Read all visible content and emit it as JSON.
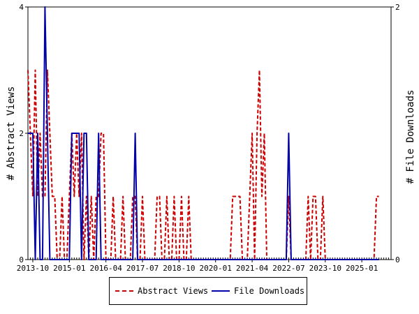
{
  "chart_data": {
    "type": "line",
    "title": "",
    "xlabel": "",
    "ylabel": "# Abstract Views",
    "y2label": "# File Downloads",
    "ylim": [
      0,
      4
    ],
    "y2lim": [
      0,
      2
    ],
    "yticks": [
      0,
      2,
      4
    ],
    "y2ticks": [
      0,
      2
    ],
    "xlim": [
      "2013-08",
      "2026-01"
    ],
    "xticks": [
      "2013-10",
      "2015-01",
      "2016-04",
      "2017-07",
      "2018-10",
      "2020-01",
      "2021-04",
      "2022-07",
      "2023-10",
      "2025-01"
    ],
    "grid": false,
    "legend_position": "bottom",
    "series": [
      {
        "name": "Abstract Views",
        "axis": "left",
        "color": "#cc0000",
        "style": "dashed",
        "points": [
          [
            "2013-08",
            3
          ],
          [
            "2013-09",
            2
          ],
          [
            "2013-10",
            1
          ],
          [
            "2013-11",
            3
          ],
          [
            "2013-12",
            1
          ],
          [
            "2014-01",
            2
          ],
          [
            "2014-02",
            1
          ],
          [
            "2014-03",
            1
          ],
          [
            "2014-04",
            3
          ],
          [
            "2014-05",
            2
          ],
          [
            "2014-06",
            1
          ],
          [
            "2014-07",
            1
          ],
          [
            "2014-08",
            0
          ],
          [
            "2014-09",
            0
          ],
          [
            "2014-10",
            1
          ],
          [
            "2014-11",
            0
          ],
          [
            "2014-12",
            0
          ],
          [
            "2015-01",
            1
          ],
          [
            "2015-02",
            2
          ],
          [
            "2015-03",
            1
          ],
          [
            "2015-04",
            2
          ],
          [
            "2015-05",
            1
          ],
          [
            "2015-06",
            2
          ],
          [
            "2015-07",
            0
          ],
          [
            "2015-08",
            1
          ],
          [
            "2015-09",
            0
          ],
          [
            "2015-10",
            1
          ],
          [
            "2015-11",
            0
          ],
          [
            "2015-12",
            1
          ],
          [
            "2016-01",
            1
          ],
          [
            "2016-02",
            2
          ],
          [
            "2016-03",
            2
          ],
          [
            "2016-04",
            0
          ],
          [
            "2016-05",
            0
          ],
          [
            "2016-06",
            0
          ],
          [
            "2016-07",
            1
          ],
          [
            "2016-08",
            0
          ],
          [
            "2016-09",
            0
          ],
          [
            "2016-10",
            0
          ],
          [
            "2016-11",
            1
          ],
          [
            "2016-12",
            0
          ],
          [
            "2017-01",
            0
          ],
          [
            "2017-02",
            0
          ],
          [
            "2017-03",
            1
          ],
          [
            "2017-04",
            1
          ],
          [
            "2017-05",
            0
          ],
          [
            "2017-06",
            0
          ],
          [
            "2017-07",
            1
          ],
          [
            "2017-08",
            0
          ],
          [
            "2017-09",
            0
          ],
          [
            "2017-10",
            0
          ],
          [
            "2017-11",
            0
          ],
          [
            "2017-12",
            0
          ],
          [
            "2018-01",
            1
          ],
          [
            "2018-02",
            1
          ],
          [
            "2018-03",
            0
          ],
          [
            "2018-04",
            0
          ],
          [
            "2018-05",
            1
          ],
          [
            "2018-06",
            0
          ],
          [
            "2018-07",
            0
          ],
          [
            "2018-08",
            1
          ],
          [
            "2018-09",
            0
          ],
          [
            "2018-10",
            0
          ],
          [
            "2018-11",
            1
          ],
          [
            "2018-12",
            0
          ],
          [
            "2019-01",
            0
          ],
          [
            "2019-02",
            1
          ],
          [
            "2019-03",
            0
          ],
          [
            "2019-04",
            0
          ],
          [
            "2019-05",
            0
          ],
          [
            "2019-06",
            0
          ],
          [
            "2019-07",
            0
          ],
          [
            "2019-08",
            0
          ],
          [
            "2019-09",
            0
          ],
          [
            "2019-10",
            0
          ],
          [
            "2019-11",
            0
          ],
          [
            "2019-12",
            0
          ],
          [
            "2020-01",
            0
          ],
          [
            "2020-02",
            0
          ],
          [
            "2020-03",
            0
          ],
          [
            "2020-04",
            0
          ],
          [
            "2020-05",
            0
          ],
          [
            "2020-06",
            0
          ],
          [
            "2020-07",
            0
          ],
          [
            "2020-08",
            1
          ],
          [
            "2020-09",
            1
          ],
          [
            "2020-10",
            1
          ],
          [
            "2020-11",
            1
          ],
          [
            "2020-12",
            0
          ],
          [
            "2021-01",
            0
          ],
          [
            "2021-02",
            0
          ],
          [
            "2021-03",
            1
          ],
          [
            "2021-04",
            2
          ],
          [
            "2021-05",
            0
          ],
          [
            "2021-06",
            2
          ],
          [
            "2021-07",
            3
          ],
          [
            "2021-08",
            1
          ],
          [
            "2021-09",
            2
          ],
          [
            "2021-10",
            0
          ],
          [
            "2021-11",
            0
          ],
          [
            "2021-12",
            0
          ],
          [
            "2022-01",
            0
          ],
          [
            "2022-02",
            0
          ],
          [
            "2022-03",
            0
          ],
          [
            "2022-04",
            0
          ],
          [
            "2022-05",
            0
          ],
          [
            "2022-06",
            0
          ],
          [
            "2022-07",
            1
          ],
          [
            "2022-08",
            0
          ],
          [
            "2022-09",
            0
          ],
          [
            "2022-10",
            0
          ],
          [
            "2022-11",
            0
          ],
          [
            "2022-12",
            0
          ],
          [
            "2023-01",
            0
          ],
          [
            "2023-02",
            0
          ],
          [
            "2023-03",
            1
          ],
          [
            "2023-04",
            0
          ],
          [
            "2023-05",
            1
          ],
          [
            "2023-06",
            1
          ],
          [
            "2023-07",
            0
          ],
          [
            "2023-08",
            0
          ],
          [
            "2023-09",
            1
          ],
          [
            "2023-10",
            0
          ],
          [
            "2023-11",
            0
          ],
          [
            "2023-12",
            0
          ],
          [
            "2024-01",
            0
          ],
          [
            "2024-02",
            0
          ],
          [
            "2024-03",
            0
          ],
          [
            "2024-04",
            0
          ],
          [
            "2024-05",
            0
          ],
          [
            "2024-06",
            0
          ],
          [
            "2024-07",
            0
          ],
          [
            "2024-08",
            0
          ],
          [
            "2024-09",
            0
          ],
          [
            "2024-10",
            0
          ],
          [
            "2024-11",
            0
          ],
          [
            "2024-12",
            0
          ],
          [
            "2025-01",
            0
          ],
          [
            "2025-02",
            0
          ],
          [
            "2025-03",
            0
          ],
          [
            "2025-04",
            0
          ],
          [
            "2025-05",
            0
          ],
          [
            "2025-06",
            0
          ],
          [
            "2025-07",
            1
          ],
          [
            "2025-08",
            1
          ]
        ]
      },
      {
        "name": "File Downloads",
        "axis": "right",
        "color": "#0000aa",
        "style": "solid",
        "points": [
          [
            "2013-08",
            1
          ],
          [
            "2013-09",
            1
          ],
          [
            "2013-10",
            1
          ],
          [
            "2013-11",
            0
          ],
          [
            "2013-12",
            1
          ],
          [
            "2014-01",
            0
          ],
          [
            "2014-02",
            0
          ],
          [
            "2014-03",
            2
          ],
          [
            "2014-04",
            1
          ],
          [
            "2014-05",
            0
          ],
          [
            "2014-06",
            0
          ],
          [
            "2014-07",
            0
          ],
          [
            "2014-08",
            0
          ],
          [
            "2014-09",
            0
          ],
          [
            "2014-10",
            0
          ],
          [
            "2014-11",
            0
          ],
          [
            "2014-12",
            0
          ],
          [
            "2015-01",
            0
          ],
          [
            "2015-02",
            1
          ],
          [
            "2015-03",
            1
          ],
          [
            "2015-04",
            1
          ],
          [
            "2015-05",
            1
          ],
          [
            "2015-06",
            0
          ],
          [
            "2015-07",
            1
          ],
          [
            "2015-08",
            1
          ],
          [
            "2015-09",
            0
          ],
          [
            "2015-10",
            0
          ],
          [
            "2015-11",
            0
          ],
          [
            "2015-12",
            0
          ],
          [
            "2016-01",
            1
          ],
          [
            "2016-02",
            0
          ],
          [
            "2016-03",
            0
          ],
          [
            "2016-04",
            0
          ],
          [
            "2016-05",
            0
          ],
          [
            "2016-06",
            0
          ],
          [
            "2016-07",
            0
          ],
          [
            "2016-08",
            0
          ],
          [
            "2016-09",
            0
          ],
          [
            "2016-10",
            0
          ],
          [
            "2016-11",
            0
          ],
          [
            "2016-12",
            0
          ],
          [
            "2017-01",
            0
          ],
          [
            "2017-02",
            0
          ],
          [
            "2017-03",
            0
          ],
          [
            "2017-04",
            1
          ],
          [
            "2017-05",
            0
          ],
          [
            "2017-06",
            0
          ],
          [
            "2017-07",
            0
          ],
          [
            "2017-08",
            0
          ],
          [
            "2017-09",
            0
          ],
          [
            "2017-10",
            0
          ],
          [
            "2017-11",
            0
          ],
          [
            "2017-12",
            0
          ],
          [
            "2018-01",
            0
          ],
          [
            "2018-02",
            0
          ],
          [
            "2018-03",
            0
          ],
          [
            "2018-04",
            0
          ],
          [
            "2018-05",
            0
          ],
          [
            "2018-06",
            0
          ],
          [
            "2018-07",
            0
          ],
          [
            "2018-08",
            0
          ],
          [
            "2018-09",
            0
          ],
          [
            "2018-10",
            0
          ],
          [
            "2018-11",
            0
          ],
          [
            "2018-12",
            0
          ],
          [
            "2019-01",
            0
          ],
          [
            "2019-02",
            0
          ],
          [
            "2019-03",
            0
          ],
          [
            "2019-04",
            0
          ],
          [
            "2019-05",
            0
          ],
          [
            "2019-06",
            0
          ],
          [
            "2019-07",
            0
          ],
          [
            "2019-08",
            0
          ],
          [
            "2019-09",
            0
          ],
          [
            "2019-10",
            0
          ],
          [
            "2019-11",
            0
          ],
          [
            "2019-12",
            0
          ],
          [
            "2020-01",
            0
          ],
          [
            "2020-02",
            0
          ],
          [
            "2020-03",
            0
          ],
          [
            "2020-04",
            0
          ],
          [
            "2020-05",
            0
          ],
          [
            "2020-06",
            0
          ],
          [
            "2020-07",
            0
          ],
          [
            "2020-08",
            0
          ],
          [
            "2020-09",
            0
          ],
          [
            "2020-10",
            0
          ],
          [
            "2020-11",
            0
          ],
          [
            "2020-12",
            0
          ],
          [
            "2021-01",
            0
          ],
          [
            "2021-02",
            0
          ],
          [
            "2021-03",
            0
          ],
          [
            "2021-04",
            0
          ],
          [
            "2021-05",
            0
          ],
          [
            "2021-06",
            0
          ],
          [
            "2021-07",
            0
          ],
          [
            "2021-08",
            0
          ],
          [
            "2021-09",
            0
          ],
          [
            "2021-10",
            0
          ],
          [
            "2021-11",
            0
          ],
          [
            "2021-12",
            0
          ],
          [
            "2022-01",
            0
          ],
          [
            "2022-02",
            0
          ],
          [
            "2022-03",
            0
          ],
          [
            "2022-04",
            0
          ],
          [
            "2022-05",
            0
          ],
          [
            "2022-06",
            0
          ],
          [
            "2022-07",
            1
          ],
          [
            "2022-08",
            0
          ],
          [
            "2022-09",
            0
          ],
          [
            "2022-10",
            0
          ],
          [
            "2022-11",
            0
          ],
          [
            "2022-12",
            0
          ],
          [
            "2023-01",
            0
          ],
          [
            "2023-02",
            0
          ],
          [
            "2023-03",
            0
          ],
          [
            "2023-04",
            0
          ],
          [
            "2023-05",
            0
          ],
          [
            "2023-06",
            0
          ],
          [
            "2023-07",
            0
          ],
          [
            "2023-08",
            0
          ],
          [
            "2023-09",
            0
          ],
          [
            "2023-10",
            0
          ],
          [
            "2023-11",
            0
          ],
          [
            "2023-12",
            0
          ],
          [
            "2024-01",
            0
          ],
          [
            "2024-02",
            0
          ],
          [
            "2024-03",
            0
          ],
          [
            "2024-04",
            0
          ],
          [
            "2024-05",
            0
          ],
          [
            "2024-06",
            0
          ],
          [
            "2024-07",
            0
          ],
          [
            "2024-08",
            0
          ],
          [
            "2024-09",
            0
          ],
          [
            "2024-10",
            0
          ],
          [
            "2024-11",
            0
          ],
          [
            "2024-12",
            0
          ],
          [
            "2025-01",
            0
          ],
          [
            "2025-02",
            0
          ],
          [
            "2025-03",
            0
          ],
          [
            "2025-04",
            0
          ],
          [
            "2025-05",
            0
          ],
          [
            "2025-06",
            0
          ],
          [
            "2025-07",
            0
          ],
          [
            "2025-08",
            0
          ]
        ]
      }
    ]
  },
  "legend": {
    "items": [
      {
        "label": "Abstract Views",
        "color": "#cc0000",
        "style": "dashed"
      },
      {
        "label": "File Downloads",
        "color": "#0000aa",
        "style": "solid"
      }
    ]
  }
}
